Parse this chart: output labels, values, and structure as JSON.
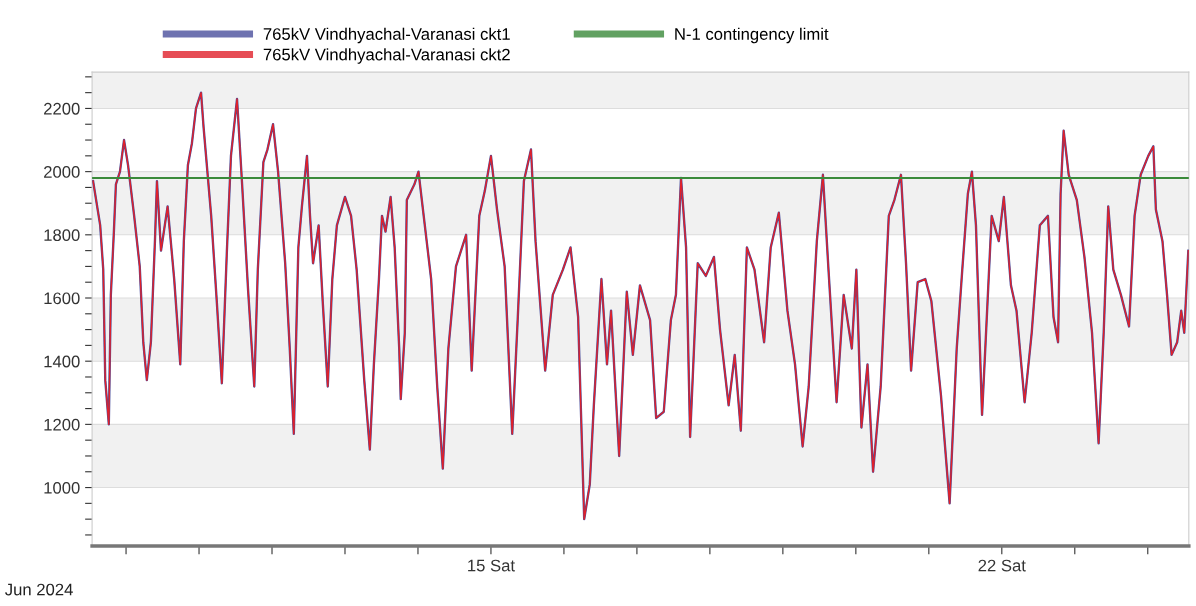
{
  "chart_data": {
    "type": "line",
    "x": [
      "2024-06-09T13:10",
      "2024-06-09T15:30",
      "2024-06-09T16:30",
      "2024-06-09T17:10",
      "2024-06-09T18:20",
      "2024-06-09T19:00",
      "2024-06-09T20:00",
      "2024-06-09T20:40",
      "2024-06-09T22:00",
      "2024-06-09T23:20",
      "2024-06-10T00:40",
      "2024-06-10T02:40",
      "2024-06-10T04:30",
      "2024-06-10T05:40",
      "2024-06-10T06:50",
      "2024-06-10T08:10",
      "2024-06-10T09:30",
      "2024-06-10T10:10",
      "2024-06-10T11:30",
      "2024-06-10T13:40",
      "2024-06-10T15:50",
      "2024-06-10T17:50",
      "2024-06-10T19:00",
      "2024-06-10T20:20",
      "2024-06-10T21:40",
      "2024-06-10T23:00",
      "2024-06-11T00:40",
      "2024-06-11T01:30",
      "2024-06-11T04:00",
      "2024-06-11T05:50",
      "2024-06-11T07:30",
      "2024-06-11T09:10",
      "2024-06-11T10:30",
      "2024-06-11T12:30",
      "2024-06-11T14:10",
      "2024-06-11T16:10",
      "2024-06-11T18:10",
      "2024-06-11T19:20",
      "2024-06-11T21:10",
      "2024-06-11T22:30",
      "2024-06-12T00:20",
      "2024-06-12T02:00",
      "2024-06-12T04:20",
      "2024-06-12T05:50",
      "2024-06-12T07:10",
      "2024-06-12T08:40",
      "2024-06-12T09:50",
      "2024-06-12T11:30",
      "2024-06-12T12:30",
      "2024-06-12T13:30",
      "2024-06-12T15:20",
      "2024-06-12T16:40",
      "2024-06-12T18:20",
      "2024-06-12T19:50",
      "2024-06-12T21:20",
      "2024-06-13T00:00",
      "2024-06-13T02:00",
      "2024-06-13T03:50",
      "2024-06-13T06:20",
      "2024-06-13T08:10",
      "2024-06-13T09:30",
      "2024-06-13T11:10",
      "2024-06-13T12:10",
      "2024-06-13T13:20",
      "2024-06-13T15:00",
      "2024-06-13T16:20",
      "2024-06-13T17:50",
      "2024-06-13T18:20",
      "2024-06-13T19:40",
      "2024-06-13T20:20",
      "2024-06-13T22:50",
      "2024-06-14T00:10",
      "2024-06-14T04:20",
      "2024-06-14T06:20",
      "2024-06-14T08:10",
      "2024-06-14T10:00",
      "2024-06-14T12:30",
      "2024-06-14T15:50",
      "2024-06-14T17:40",
      "2024-06-14T20:10",
      "2024-06-14T22:00",
      "2024-06-15T00:00",
      "2024-06-15T02:00",
      "2024-06-15T04:30",
      "2024-06-15T07:00",
      "2024-06-15T08:50",
      "2024-06-15T10:50",
      "2024-06-15T13:10",
      "2024-06-15T14:40",
      "2024-06-15T17:50",
      "2024-06-15T20:20",
      "2024-06-15T23:40",
      "2024-06-16T02:10",
      "2024-06-16T04:40",
      "2024-06-16T06:40",
      "2024-06-16T08:30",
      "2024-06-16T09:50",
      "2024-06-16T12:20",
      "2024-06-16T14:10",
      "2024-06-16T15:30",
      "2024-06-16T18:10",
      "2024-06-16T20:40",
      "2024-06-16T22:40",
      "2024-06-17T01:00",
      "2024-06-17T04:20",
      "2024-06-17T06:20",
      "2024-06-17T08:50",
      "2024-06-17T11:10",
      "2024-06-17T12:50",
      "2024-06-17T14:30",
      "2024-06-17T16:10",
      "2024-06-17T17:30",
      "2024-06-17T20:00",
      "2024-06-17T22:40",
      "2024-06-18T01:20",
      "2024-06-18T03:20",
      "2024-06-18T06:10",
      "2024-06-18T08:10",
      "2024-06-18T10:10",
      "2024-06-18T12:10",
      "2024-06-18T14:40",
      "2024-06-18T17:50",
      "2024-06-18T20:00",
      "2024-06-18T22:40",
      "2024-06-19T01:30",
      "2024-06-19T04:00",
      "2024-06-19T06:30",
      "2024-06-19T08:30",
      "2024-06-19T11:10",
      "2024-06-19T13:10",
      "2024-06-19T15:00",
      "2024-06-19T17:40",
      "2024-06-19T20:00",
      "2024-06-19T22:40",
      "2024-06-20T00:10",
      "2024-06-20T01:50",
      "2024-06-20T03:50",
      "2024-06-20T05:40",
      "2024-06-20T08:10",
      "2024-06-20T10:50",
      "2024-06-20T12:40",
      "2024-06-20T14:50",
      "2024-06-20T16:30",
      "2024-06-20T18:10",
      "2024-06-20T20:20",
      "2024-06-20T22:50",
      "2024-06-21T00:50",
      "2024-06-21T04:00",
      "2024-06-21T06:50",
      "2024-06-21T09:10",
      "2024-06-21T11:00",
      "2024-06-21T12:50",
      "2024-06-21T14:10",
      "2024-06-21T15:30",
      "2024-06-21T17:30",
      "2024-06-21T18:40",
      "2024-06-21T20:40",
      "2024-06-21T23:00",
      "2024-06-22T00:40",
      "2024-06-22T03:00",
      "2024-06-22T04:50",
      "2024-06-22T07:30",
      "2024-06-22T09:50",
      "2024-06-22T12:30",
      "2024-06-22T15:10",
      "2024-06-22T17:00",
      "2024-06-22T18:30",
      "2024-06-22T19:20",
      "2024-06-22T20:20",
      "2024-06-22T22:00",
      "2024-06-23T00:40",
      "2024-06-23T03:10",
      "2024-06-23T05:40",
      "2024-06-23T07:50",
      "2024-06-23T09:30",
      "2024-06-23T11:00",
      "2024-06-23T12:40",
      "2024-06-23T15:10",
      "2024-06-23T17:50",
      "2024-06-23T19:40",
      "2024-06-23T21:40",
      "2024-06-24T00:10",
      "2024-06-24T01:50",
      "2024-06-24T02:40",
      "2024-06-24T04:50",
      "2024-06-24T06:20",
      "2024-06-24T07:50",
      "2024-06-24T09:40",
      "2024-06-24T11:00",
      "2024-06-24T12:00",
      "2024-06-24T13:20"
    ],
    "series": [
      {
        "name": "765kV Vindhyachal-Varanasi ckt1",
        "color": "#4a4f9c",
        "values": [
          1970,
          1830,
          1690,
          1340,
          1200,
          1610,
          1810,
          1960,
          2000,
          2100,
          2020,
          1860,
          1700,
          1460,
          1340,
          1460,
          1780,
          1970,
          1750,
          1890,
          1660,
          1390,
          1780,
          2020,
          2090,
          2200,
          2250,
          2140,
          1860,
          1590,
          1330,
          1750,
          2050,
          2230,
          1960,
          1620,
          1320,
          1690,
          2030,
          2070,
          2150,
          2000,
          1710,
          1440,
          1170,
          1760,
          1890,
          2050,
          1860,
          1710,
          1830,
          1590,
          1320,
          1660,
          1830,
          1920,
          1860,
          1690,
          1340,
          1120,
          1390,
          1660,
          1860,
          1810,
          1920,
          1760,
          1440,
          1280,
          1490,
          1910,
          1960,
          2000,
          1660,
          1320,
          1060,
          1440,
          1700,
          1800,
          1370,
          1860,
          1940,
          2050,
          1880,
          1700,
          1170,
          1540,
          1970,
          2070,
          1780,
          1370,
          1610,
          1690,
          1760,
          1540,
          900,
          1010,
          1260,
          1660,
          1390,
          1560,
          1100,
          1620,
          1420,
          1640,
          1530,
          1220,
          1240,
          1530,
          1610,
          1980,
          1760,
          1160,
          1710,
          1670,
          1730,
          1500,
          1260,
          1420,
          1180,
          1760,
          1690,
          1460,
          1760,
          1870,
          1560,
          1390,
          1130,
          1320,
          1780,
          1990,
          1690,
          1270,
          1610,
          1440,
          1690,
          1190,
          1390,
          1050,
          1320,
          1860,
          1910,
          1990,
          1710,
          1370,
          1650,
          1660,
          1590,
          1290,
          950,
          1440,
          1690,
          1930,
          2000,
          1830,
          1230,
          1460,
          1860,
          1780,
          1920,
          1640,
          1560,
          1270,
          1490,
          1830,
          1860,
          1540,
          1460,
          1930,
          2130,
          1990,
          1910,
          1730,
          1490,
          1140,
          1490,
          1890,
          1690,
          1610,
          1510,
          1860,
          1990,
          2050,
          2080,
          1880,
          1780,
          1610,
          1420,
          1460,
          1560,
          1490,
          1750
        ]
      },
      {
        "name": "765kV Vindhyachal-Varanasi ckt2",
        "color": "#e0202a",
        "values": [
          1970,
          1830,
          1690,
          1340,
          1200,
          1610,
          1810,
          1960,
          2000,
          2100,
          2020,
          1860,
          1700,
          1460,
          1340,
          1460,
          1780,
          1970,
          1750,
          1890,
          1660,
          1390,
          1780,
          2020,
          2090,
          2200,
          2250,
          2140,
          1860,
          1590,
          1330,
          1750,
          2050,
          2230,
          1960,
          1620,
          1320,
          1690,
          2030,
          2070,
          2150,
          2000,
          1710,
          1440,
          1170,
          1760,
          1890,
          2050,
          1860,
          1710,
          1830,
          1590,
          1320,
          1660,
          1830,
          1920,
          1860,
          1690,
          1340,
          1120,
          1390,
          1660,
          1860,
          1810,
          1920,
          1760,
          1440,
          1280,
          1490,
          1910,
          1960,
          2000,
          1660,
          1320,
          1060,
          1440,
          1700,
          1800,
          1370,
          1860,
          1940,
          2050,
          1880,
          1700,
          1170,
          1540,
          1970,
          2070,
          1780,
          1370,
          1610,
          1690,
          1760,
          1540,
          900,
          1010,
          1260,
          1660,
          1390,
          1560,
          1100,
          1620,
          1420,
          1640,
          1530,
          1220,
          1240,
          1530,
          1610,
          1980,
          1760,
          1160,
          1710,
          1670,
          1730,
          1500,
          1260,
          1420,
          1180,
          1760,
          1690,
          1460,
          1760,
          1870,
          1560,
          1390,
          1130,
          1320,
          1780,
          1990,
          1690,
          1270,
          1610,
          1440,
          1690,
          1190,
          1390,
          1050,
          1320,
          1860,
          1910,
          1990,
          1710,
          1370,
          1650,
          1660,
          1590,
          1290,
          950,
          1440,
          1690,
          1930,
          2000,
          1830,
          1230,
          1460,
          1860,
          1780,
          1920,
          1640,
          1560,
          1270,
          1490,
          1830,
          1860,
          1540,
          1460,
          1930,
          2130,
          1990,
          1910,
          1730,
          1490,
          1140,
          1490,
          1890,
          1690,
          1610,
          1510,
          1860,
          1990,
          2050,
          2080,
          1880,
          1780,
          1610,
          1420,
          1460,
          1560,
          1490,
          1750
        ]
      }
    ],
    "ref_lines": [
      {
        "axis": "y",
        "value": 1980,
        "label": "N-1 contingency limit",
        "color": "#3a8a3a"
      }
    ],
    "bands": [
      {
        "axis": "y",
        "from": 1000,
        "to": 1200,
        "color": "#f1f1f1"
      },
      {
        "axis": "y",
        "from": 1400,
        "to": 1600,
        "color": "#f1f1f1"
      },
      {
        "axis": "y",
        "from": 1800,
        "to": 2000,
        "color": "#f1f1f1"
      },
      {
        "axis": "y",
        "from": 2200,
        "to": 2315,
        "color": "#f1f1f1"
      }
    ],
    "xlim": [
      "2024-06-09T12:50",
      "2024-06-24T13:30"
    ],
    "ylim": [
      815,
      2315
    ],
    "xticks": [
      {
        "value": "2024-06-10",
        "label": null
      },
      {
        "value": "2024-06-11",
        "label": null
      },
      {
        "value": "2024-06-12",
        "label": null
      },
      {
        "value": "2024-06-13",
        "label": null
      },
      {
        "value": "2024-06-14",
        "label": null
      },
      {
        "value": "2024-06-15",
        "label": "15 Sat"
      },
      {
        "value": "2024-06-16",
        "label": null
      },
      {
        "value": "2024-06-17",
        "label": null
      },
      {
        "value": "2024-06-18",
        "label": null
      },
      {
        "value": "2024-06-19",
        "label": null
      },
      {
        "value": "2024-06-20",
        "label": null
      },
      {
        "value": "2024-06-21",
        "label": null
      },
      {
        "value": "2024-06-22",
        "label": "22 Sat"
      },
      {
        "value": "2024-06-23",
        "label": null
      },
      {
        "value": "2024-06-24",
        "label": null
      }
    ],
    "yticks": [
      {
        "value": 850,
        "label": null
      },
      {
        "value": 900,
        "label": null
      },
      {
        "value": 950,
        "label": null
      },
      1000,
      {
        "value": 1050,
        "label": null
      },
      {
        "value": 1100,
        "label": null
      },
      {
        "value": 1150,
        "label": null
      },
      1200,
      {
        "value": 1250,
        "label": null
      },
      {
        "value": 1300,
        "label": null
      },
      {
        "value": 1350,
        "label": null
      },
      1400,
      {
        "value": 1450,
        "label": null
      },
      {
        "value": 1500,
        "label": null
      },
      {
        "value": 1550,
        "label": null
      },
      1600,
      {
        "value": 1650,
        "label": null
      },
      {
        "value": 1700,
        "label": null
      },
      {
        "value": 1750,
        "label": null
      },
      1800,
      {
        "value": 1850,
        "label": null
      },
      {
        "value": 1900,
        "label": null
      },
      {
        "value": 1950,
        "label": null
      },
      2000,
      {
        "value": 2050,
        "label": null
      },
      {
        "value": 2100,
        "label": null
      },
      {
        "value": 2150,
        "label": null
      },
      2200,
      {
        "value": 2250,
        "label": null
      },
      {
        "value": 2300,
        "label": null
      }
    ],
    "grid": "y",
    "legend": "top",
    "annotations": [
      "Jun 2024"
    ]
  }
}
